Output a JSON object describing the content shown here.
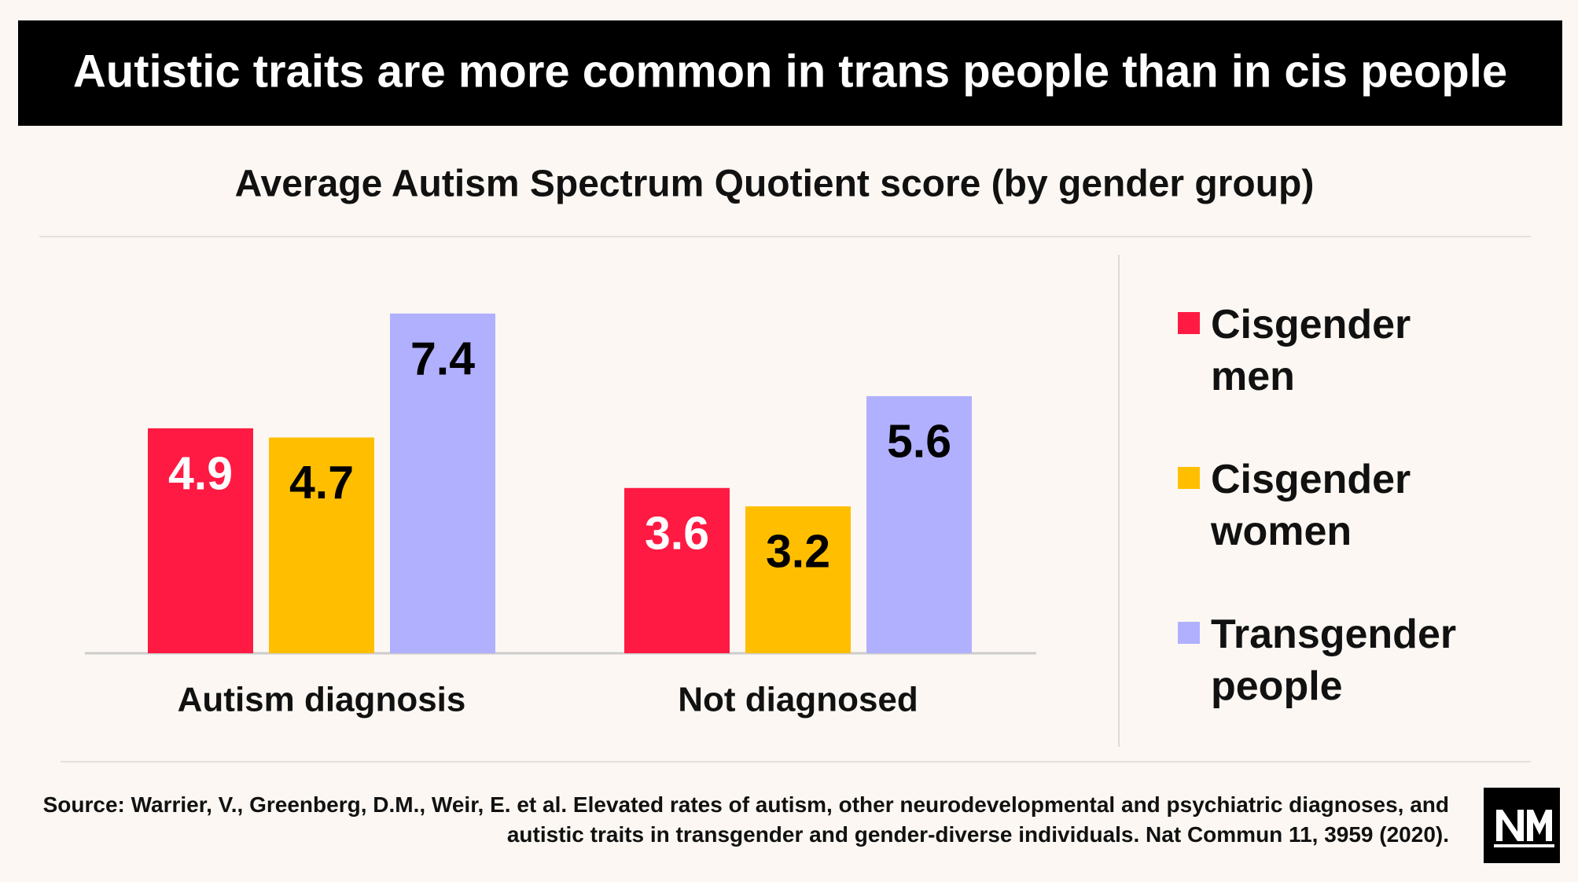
{
  "chart_data": {
    "type": "bar",
    "title": "Autistic traits are more common in trans people than in cis people",
    "subtitle": "Average Autism Spectrum Quotient score (by gender group)",
    "categories": [
      "Autism diagnosis",
      "Not diagnosed"
    ],
    "series": [
      {
        "name": "Cisgender men",
        "color": "#ff1a43",
        "label_color": "#ffffff",
        "values": [
          4.9,
          3.6
        ]
      },
      {
        "name": "Cisgender women",
        "color": "#ffbf00",
        "label_color": "#000000",
        "values": [
          4.7,
          3.2
        ]
      },
      {
        "name": "Transgender people",
        "color": "#b0b0ff",
        "label_color": "#000000",
        "values": [
          7.4,
          5.6
        ]
      }
    ],
    "legend": "right",
    "source": "Source: Warrier, V., Greenberg, D.M., Weir, E. et al. Elevated rates of autism, other neurodevelopmental and psychiatric diagnoses, and autistic traits in transgender and gender-diverse individuals. Nat Commun 11, 3959 (2020)."
  }
}
